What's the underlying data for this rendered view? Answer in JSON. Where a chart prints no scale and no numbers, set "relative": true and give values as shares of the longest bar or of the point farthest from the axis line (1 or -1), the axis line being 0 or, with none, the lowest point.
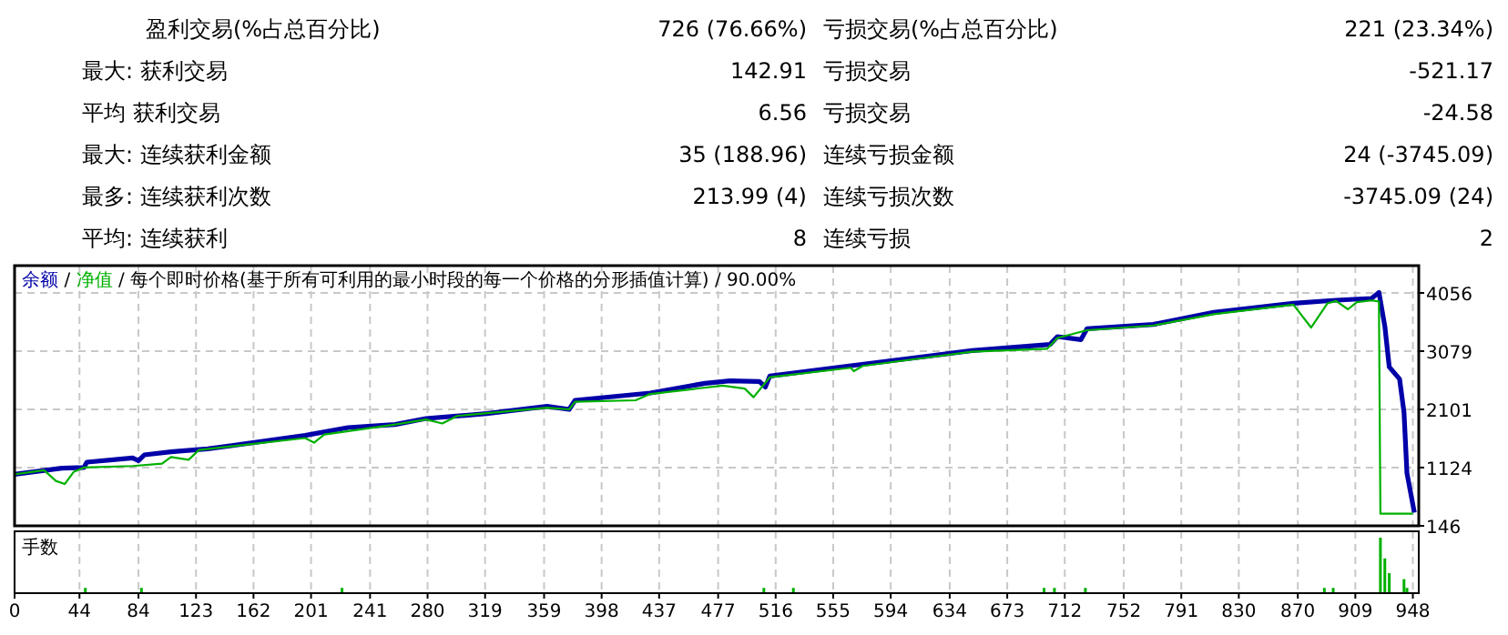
{
  "chart_data": [
    {
      "type": "other",
      "annotations": [
        "盈利交易(%占总百分比)",
        "726 (76.66%)",
        "亏损交易(%占总百分比)",
        "221 (23.34%)",
        "最大: 获利交易",
        "142.91",
        "亏损交易",
        "-521.17",
        "平均 获利交易",
        "6.56",
        "亏损交易",
        "-24.58",
        "最大: 连续获利金额",
        "35 (188.96)",
        "连续亏损金额",
        "24 (-3745.09)",
        "最多: 连续获利次数",
        "213.99 (4)",
        "连续亏损次数",
        "-3745.09 (24)",
        "平均: 连续获利",
        "8",
        "连续亏损",
        "2"
      ]
    },
    {
      "type": "line",
      "annotations": [
        "/"
      ],
      "title": "/ 每个即时价格(基于所有可利用的最小时段的每一个价格的分形插值计算) / 90.00%",
      "xlim": [
        0,
        952
      ],
      "xticks": [
        0,
        44,
        84,
        123,
        162,
        201,
        241,
        280,
        319,
        359,
        398,
        437,
        477,
        516,
        555,
        594,
        634,
        673,
        712,
        752,
        791,
        830,
        870,
        909,
        948
      ],
      "ylim": [
        146,
        4514
      ],
      "yticks": [
        146,
        1124,
        2101,
        3079,
        4056
      ],
      "grid": true,
      "legend": "top left",
      "tick_labels": "y",
      "series": [
        {
          "name": "余额",
          "color": "#0000a8",
          "x": [
            0,
            32,
            47,
            49,
            80,
            84,
            88,
            106,
            131,
            197,
            226,
            258,
            279,
            320,
            361,
            376,
            380,
            431,
            468,
            485,
            505,
            509,
            512,
            567,
            649,
            702,
            707,
            723,
            727,
            772,
            813,
            867,
            896,
            920,
            925,
            929,
            932,
            939,
            942,
            944,
            949
          ],
          "values": [
            1010,
            1114,
            1124,
            1215,
            1285,
            1240,
            1337,
            1389,
            1438,
            1664,
            1795,
            1847,
            1948,
            2030,
            2152,
            2101,
            2254,
            2376,
            2538,
            2580,
            2570,
            2476,
            2660,
            2834,
            3088,
            3191,
            3323,
            3272,
            3454,
            3527,
            3729,
            3882,
            3934,
            3964,
            4065,
            3497,
            2813,
            2611,
            2049,
            1032,
            369
          ]
        },
        {
          "name": "净值",
          "color": "#00b000",
          "x": [
            0,
            20,
            28,
            34,
            40,
            47,
            80,
            100,
            106,
            118,
            125,
            197,
            203,
            210,
            258,
            279,
            290,
            300,
            361,
            376,
            380,
            421,
            431,
            480,
            495,
            501,
            512,
            567,
            569,
            575,
            649,
            700,
            707,
            727,
            772,
            813,
            867,
            879,
            890,
            896,
            904,
            910,
            920,
            925,
            926,
            948
          ],
          "values": [
            1010,
            1080,
            900,
            848,
            1050,
            1124,
            1150,
            1190,
            1300,
            1255,
            1420,
            1620,
            1542,
            1680,
            1847,
            1930,
            1865,
            1990,
            2130,
            2101,
            2230,
            2254,
            2360,
            2500,
            2450,
            2305,
            2640,
            2800,
            2742,
            2830,
            3070,
            3118,
            3300,
            3430,
            3510,
            3700,
            3860,
            3475,
            3880,
            3920,
            3781,
            3900,
            3930,
            3913,
            350,
            350
          ]
        }
      ]
    },
    {
      "type": "bar",
      "ylabel": "手数",
      "relative": true,
      "color": "#00b000",
      "grid": "x",
      "tick_labels": "x",
      "xlim": [
        0,
        952
      ],
      "xticks": [
        0,
        44,
        84,
        123,
        162,
        201,
        241,
        280,
        319,
        359,
        398,
        437,
        477,
        516,
        555,
        594,
        634,
        673,
        712,
        752,
        791,
        830,
        870,
        909,
        948
      ],
      "x": [
        48,
        86,
        222,
        508,
        528,
        698,
        705,
        726,
        888,
        894,
        926,
        929,
        932,
        942,
        944
      ],
      "values": [
        0.08,
        0.08,
        0.08,
        0.08,
        0.08,
        0.08,
        0.08,
        0.08,
        0.08,
        0.08,
        1,
        0.62,
        0.35,
        0.24,
        0.08
      ]
    }
  ]
}
